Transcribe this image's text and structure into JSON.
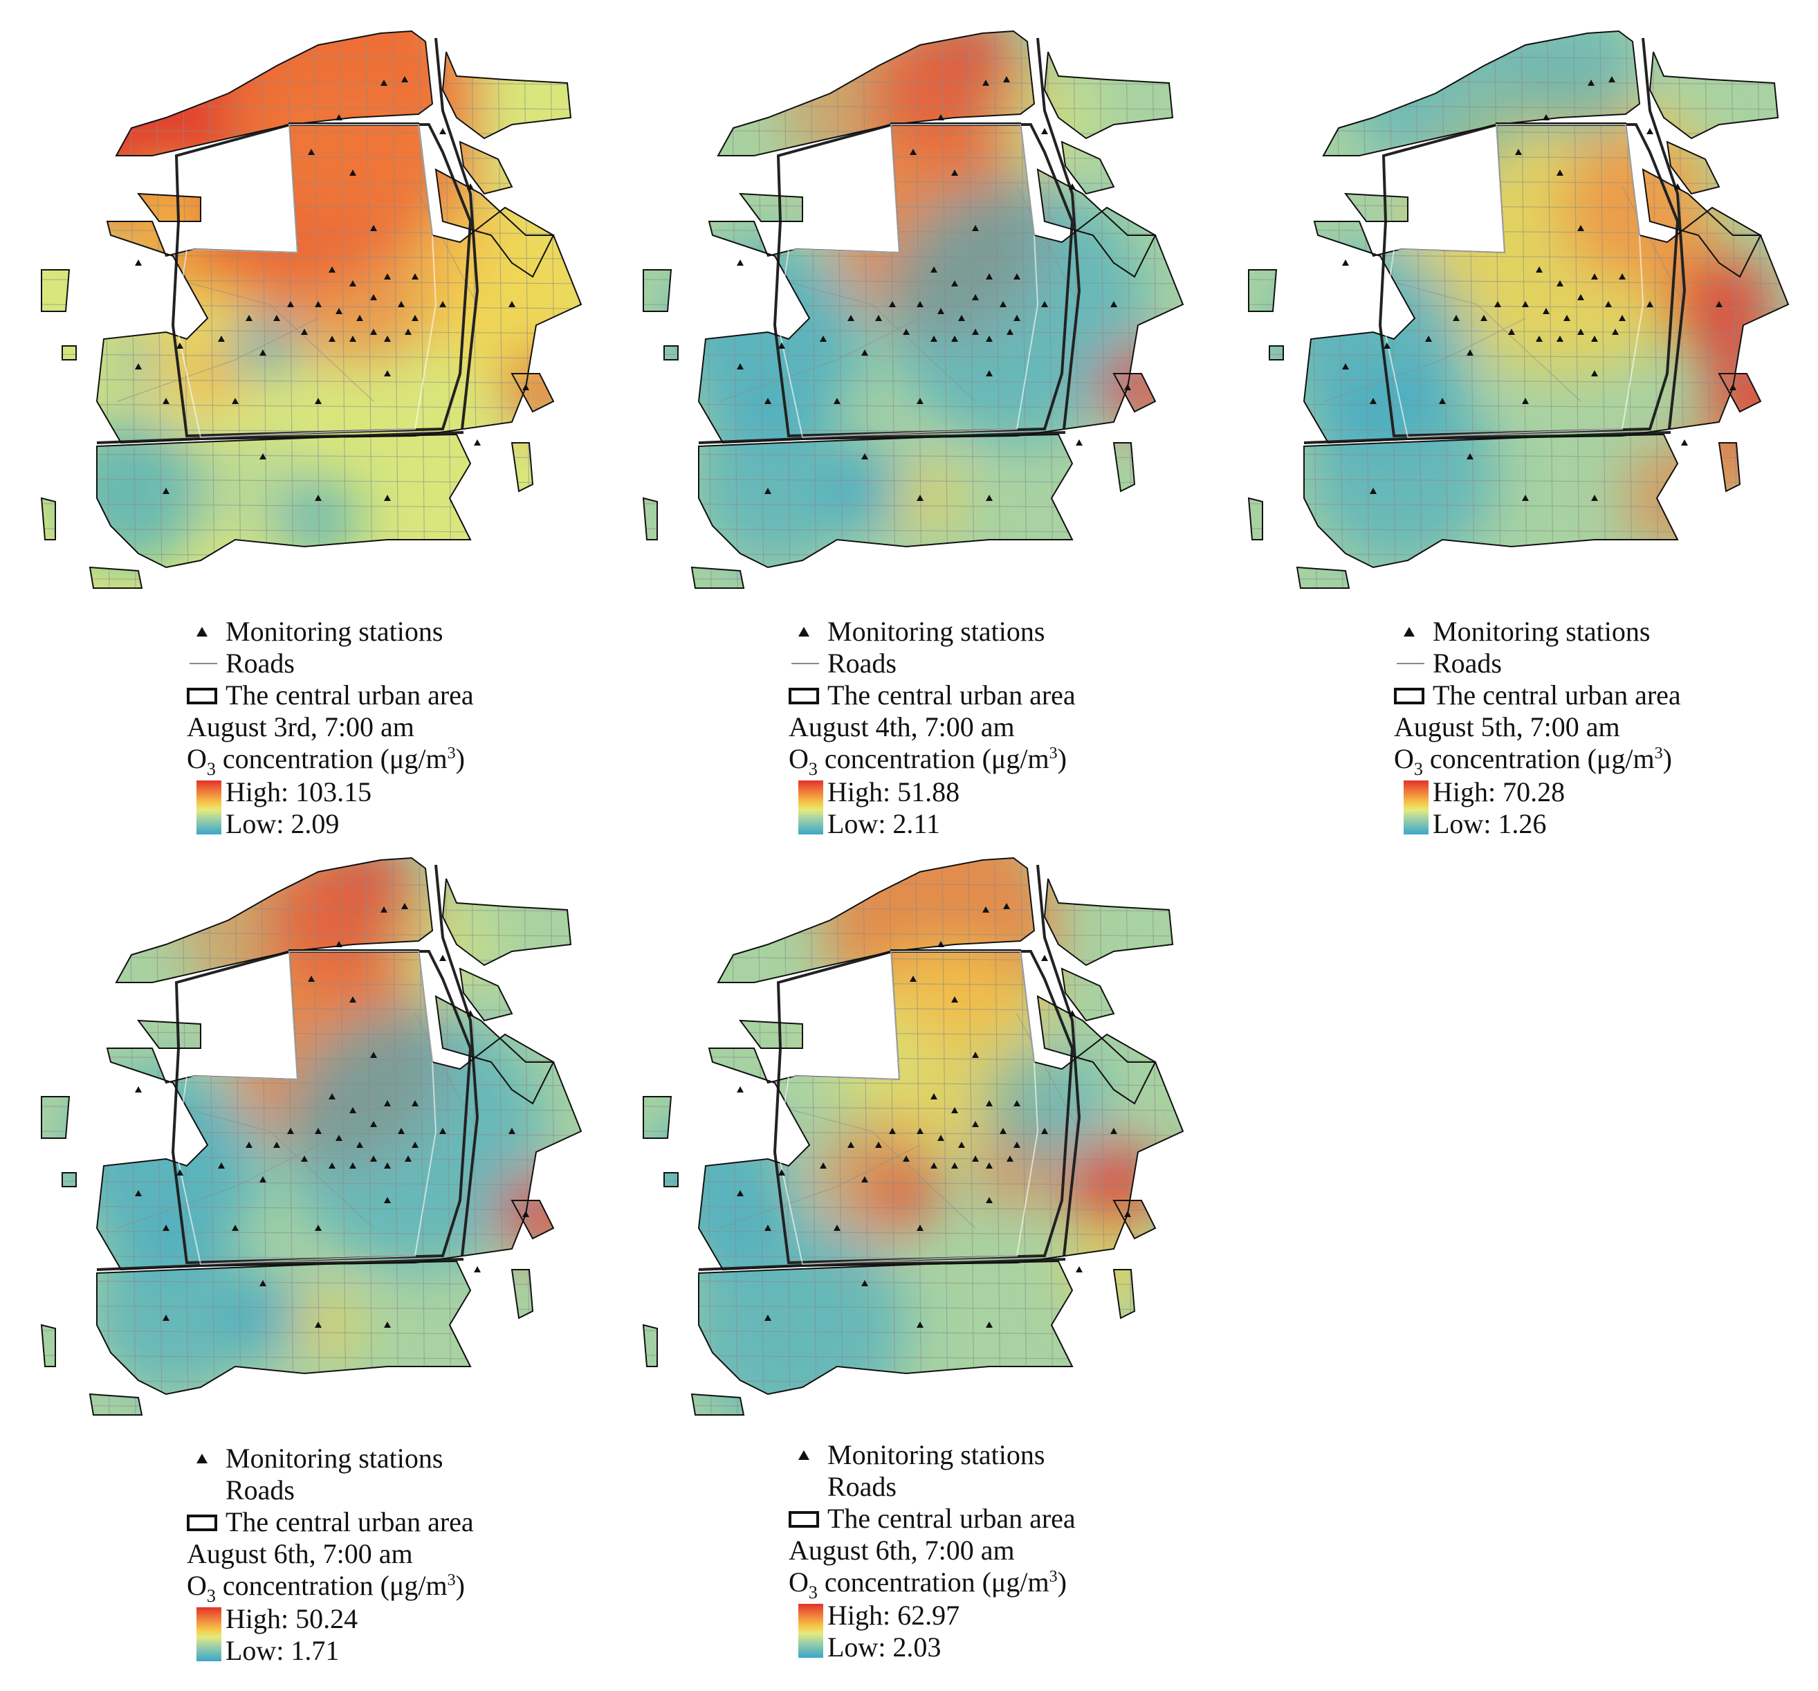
{
  "legend_common": {
    "stations": "Monitoring stations",
    "roads": "Roads",
    "area": "The central urban area",
    "o3_prefix": "O",
    "o3_sub": "3",
    "o3_mid": " concentration (μg/m",
    "o3_sup": "3",
    "o3_end": ")"
  },
  "colors": {
    "high": "#e2322a",
    "orange": "#f07a3a",
    "yellow": "#f6d24a",
    "pale": "#d9e67c",
    "green": "#a8d2a2",
    "low": "#3aa6c8",
    "road": "#8a8a8a",
    "boundary": "#111111"
  },
  "panels": [
    {
      "id": "aug3",
      "date": "August 3rd, 7:00 am",
      "high": "High: 103.15",
      "low": "Low: 2.09",
      "theme": "warm"
    },
    {
      "id": "aug4",
      "date": "August 4th, 7:00 am",
      "high": "High: 51.88",
      "low": "Low: 2.11",
      "theme": "north-hot"
    },
    {
      "id": "aug5",
      "date": "August 5th, 7:00 am",
      "high": "High: 70.28",
      "low": "Low: 1.26",
      "theme": "center-warm"
    },
    {
      "id": "aug6a",
      "date": "August 6th, 7:00 am",
      "high": "High: 50.24",
      "low": "Low: 1.71",
      "theme": "north-hot"
    },
    {
      "id": "aug6b",
      "date": "August 6th, 7:00 am",
      "high": "High: 62.97",
      "low": "Low: 2.03",
      "theme": "mixed"
    }
  ]
}
